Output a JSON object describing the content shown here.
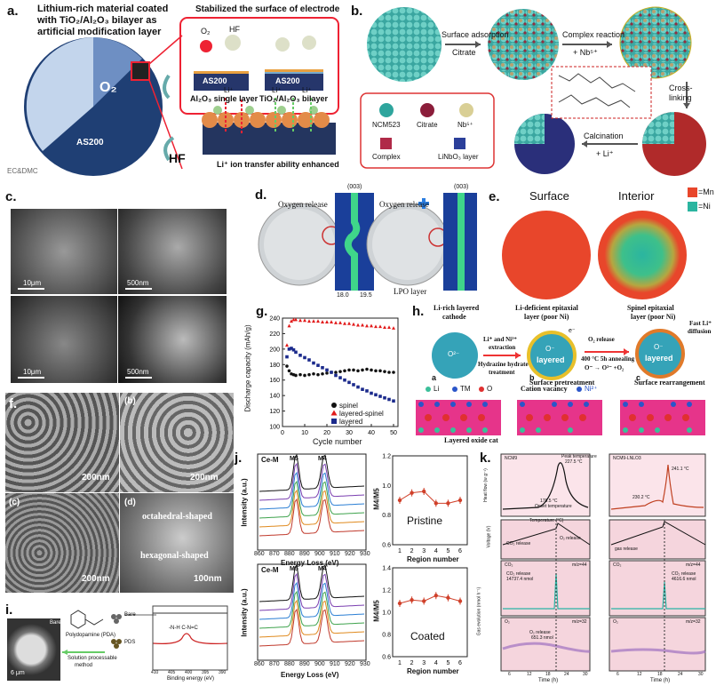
{
  "a": {
    "label": "a.",
    "title_line1": "Lithium-rich material coated",
    "title_line2": "with TiO₂/Al₂O₃ bilayer as",
    "title_line3": "artificial modification layer",
    "stabilized": "Stabilized the surface of electrode",
    "o2": "O₂",
    "hf": "HF",
    "as200": "AS200",
    "single_layer": "Al₂O₃ single layer",
    "bilayer": "TiO₂/Al₂O₃ bilayer",
    "li_plus": "Li⁺",
    "transfer": "Li⁺ ion transfer ability enhanced",
    "o2_big": "O₂",
    "hf_big": "HF",
    "ec_dmc": "EC&DMC"
  },
  "b": {
    "label": "b.",
    "surface_adsorption": "Surface adsorption",
    "citrate_arrow": "Citrate",
    "complex_reaction": "Complex reaction",
    "nb_plus": "+ Nb⁵⁺",
    "cross_linking": "Cross-\nlinking",
    "cross1": "Cross-",
    "cross2": "linking",
    "calcination": "Calcination",
    "li_plus": "+ Li⁺",
    "legend": [
      "NCM523",
      "Citrate",
      "Nb⁵⁺",
      "Complex",
      "LiNbO₃ layer"
    ]
  },
  "c": {
    "label": "c.",
    "scales": [
      "10μm",
      "500nm",
      "10μm",
      "500nm"
    ]
  },
  "d": {
    "label": "d.",
    "oxygen_release_1": "Oxygen release",
    "oxygen_release_2": "Oxygen release",
    "peak_1": "(003)",
    "peak_2": "(003)",
    "lpo_layer": "LPO layer",
    "tick_1": "18.0",
    "tick_2": "19.5"
  },
  "e": {
    "label": "e.",
    "surface": "Surface",
    "interior": "Interior",
    "legend_mn": "=Mn",
    "legend_ni": "=Ni",
    "color_mn": "#e8462b",
    "color_ni": "#2bb5a0"
  },
  "f": {
    "label": "f.",
    "sub_b": "(b)",
    "sub_c": "(c)",
    "sub_d": "(d)",
    "scale_1": "200nm",
    "scale_2": "200nm",
    "scale_3": "200nm",
    "scale_4": "100nm",
    "octahedral": "octahedral-shaped",
    "hexagonal": "hexagonal-shaped"
  },
  "g": {
    "label": "g.",
    "chart_data": {
      "type": "scatter",
      "xlabel": "Cycle number",
      "ylabel": "Discharge capacity (mAh/g)",
      "xlim": [
        0,
        52
      ],
      "ylim": [
        100,
        240
      ],
      "xticks": [
        0,
        10,
        20,
        30,
        40,
        50
      ],
      "yticks": [
        100,
        120,
        140,
        160,
        180,
        200,
        220,
        240
      ],
      "series": [
        {
          "name": "spinel",
          "color": "#111111",
          "marker": "circle",
          "x": [
            2,
            3,
            4,
            5,
            6,
            8,
            10,
            12,
            14,
            16,
            18,
            20,
            22,
            24,
            26,
            28,
            30,
            32,
            34,
            36,
            38,
            40,
            42,
            44,
            46,
            48,
            50
          ],
          "y": [
            178,
            172,
            168,
            167,
            166,
            167,
            166,
            167,
            168,
            167,
            168,
            169,
            170,
            170,
            171,
            172,
            173,
            173,
            172,
            173,
            174,
            173,
            172,
            172,
            171,
            170,
            170
          ]
        },
        {
          "name": "layered-spinel",
          "color": "#e21b1b",
          "marker": "triangle",
          "x": [
            2,
            3,
            4,
            5,
            6,
            8,
            10,
            12,
            14,
            16,
            18,
            20,
            22,
            24,
            26,
            28,
            30,
            32,
            34,
            36,
            38,
            40,
            42,
            44,
            46,
            48,
            50
          ],
          "y": [
            205,
            230,
            236,
            238,
            238,
            237,
            237,
            236,
            236,
            236,
            235,
            235,
            235,
            234,
            234,
            233,
            233,
            232,
            231,
            231,
            230,
            230,
            229,
            229,
            228,
            228,
            227
          ]
        },
        {
          "name": "layered",
          "color": "#1b2a8c",
          "marker": "square",
          "x": [
            2,
            3,
            4,
            5,
            6,
            8,
            10,
            12,
            14,
            16,
            18,
            20,
            22,
            24,
            26,
            28,
            30,
            32,
            34,
            36,
            38,
            40,
            42,
            44,
            46,
            48,
            50
          ],
          "y": [
            190,
            200,
            201,
            199,
            196,
            192,
            189,
            186,
            182,
            179,
            176,
            173,
            170,
            166,
            163,
            160,
            157,
            154,
            151,
            148,
            146,
            143,
            141,
            139,
            137,
            135,
            133
          ]
        }
      ]
    }
  },
  "h": {
    "label": "h.",
    "li_rich": "Li-rich layered",
    "cathode": "cathode",
    "li_ni_extract_1": "Li⁺ and Ni²⁺",
    "li_ni_extract_2": "extraction",
    "li_deficient_1": "Li-deficient epitaxial",
    "li_deficient_2": "layer (poor Ni)",
    "hydrazine_1": "Hydrazine hydrate",
    "hydrazine_2": "treatment",
    "o2_release": "O₂ release",
    "annealing": "400 °C   5h annealing",
    "reaction": "O⁻ → O²⁻ +O₂",
    "spinel_1": "Spinel epitaxial",
    "spinel_2": "layer (poor Ni)",
    "fast_li_1": "Fast Li⁺",
    "fast_li_2": "diffusion",
    "layered": "layered",
    "layered_2": "layered",
    "layered_3": "layered",
    "o2minus": "O²⁻",
    "ominus": "O⁻",
    "ominus2": "O⁻",
    "electron": "e⁻",
    "sub_a": "a",
    "sub_b": "b",
    "sub_c": "c",
    "surface_pretreatment": "Surface pretreatment",
    "surface_rearrangement": "Surface rearrangement",
    "legend_li": "Li",
    "legend_tm": "TM",
    "legend_o": "O",
    "cation_vacancy": "Cation vacancy",
    "ni_plus": "Ni²⁺",
    "layered_oxide": "Layered oxide cat"
  },
  "i": {
    "label": "i.",
    "scale": "6 μm",
    "bare": "Bare",
    "pda": "Polydopamine (PDA)",
    "solution_1": "Solution processable",
    "solution_2": "method",
    "bare_2": "Bare",
    "pds": "PDS",
    "peak": "-N-H C-N=C",
    "binding_energy": "Binding energy (eV)",
    "ticks": [
      "410",
      "405",
      "400",
      "395",
      "390"
    ]
  },
  "j": {
    "label": "j.",
    "ce_m_1": "Ce-M",
    "ce_m_2": "Ce-M",
    "m5": "M5",
    "m4": "M4",
    "m5b": "M5",
    "m4b": "M4",
    "ylabel": "Intensity (a.u.)",
    "ylabel2": "Intensity (a.u.)",
    "xlabel": "Energy Loss (eV)",
    "xlabel2": "Energy Loss (eV)",
    "energy_ticks": [
      "860",
      "870",
      "880",
      "890",
      "900",
      "910",
      "920",
      "930"
    ],
    "ratio_label": "M4/M5",
    "ratio_label2": "M4/M5",
    "region_label": "Region number",
    "region_label2": "Region number",
    "pristine": "Pristine",
    "coated": "Coated",
    "chart_data": [
      {
        "type": "scatter",
        "name_text": "Pristine",
        "x": [
          1,
          2,
          3,
          4,
          5,
          6
        ],
        "y": [
          0.9,
          0.95,
          0.96,
          0.88,
          0.88,
          0.9
        ],
        "ylim": [
          0.6,
          1.2
        ],
        "yticks": [
          0.6,
          0.8,
          1.0,
          1.2
        ]
      },
      {
        "type": "scatter",
        "name_text": "Coated",
        "x": [
          1,
          2,
          3,
          4,
          5,
          6
        ],
        "y": [
          1.08,
          1.11,
          1.1,
          1.15,
          1.13,
          1.1
        ],
        "ylim": [
          0.6,
          1.4
        ],
        "yticks": [
          0.6,
          0.8,
          1.0,
          1.2,
          1.4
        ]
      }
    ]
  },
  "k": {
    "label": "k.",
    "ncm9": "NCM9",
    "ncm9_ln": "NCM9-LNLO3",
    "ncm9_b": "NCM9",
    "ncm9_ln_b": "NCM9-LNLO3",
    "peak_temp_1": "Peak temperature",
    "peak_temp_2": "227.5 °C",
    "onset_1": "178.5 °C",
    "onset_2": "Onset temperature",
    "t241": "241.1 °C",
    "t230": "230.2 °C",
    "heat_flow": "Heat flow (w g⁻¹)",
    "temperature": "Temperature (°C)",
    "voltage": "Voltage (V)",
    "co2_release": "CO₂ release",
    "o2_release": "O₂ release",
    "gas_release": "gas release",
    "co2": "CO₂",
    "o2": "O₂",
    "co2_b": "CO₂",
    "o2_b": "O₂",
    "mz44": "m/z=44",
    "mz32": "m/z=32",
    "mz44_b": "m/z=44",
    "mz32_b": "m/z=32",
    "co2_amount_1": "CO₂ release",
    "co2_amount_2": "14737.4 nmol",
    "co2_amount_3": "CO₂ release",
    "co2_amount_4": "4616.6 nmol",
    "o2_amount_1": "O₂ release",
    "o2_amount_2": "651.3 nmol",
    "gas_evolution": "Gas evolution (nmol h⁻¹)",
    "time": "Time (h)",
    "time_b": "Time (h)",
    "time_ticks": [
      "6",
      "12",
      "18",
      "24",
      "30"
    ]
  }
}
